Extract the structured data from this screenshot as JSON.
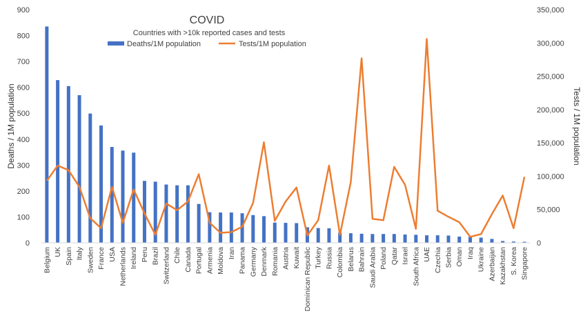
{
  "chart_data": {
    "type": "bar+line",
    "title": "COVID",
    "subtitle": "Countries with >10k reported cases and tests",
    "ylabel_left": "Deaths / 1M population",
    "ylabel_right": "Tests / 1M population",
    "ylim_left": [
      0,
      900
    ],
    "ylim_right": [
      0,
      350000
    ],
    "yticks_left": [
      "0",
      "100",
      "200",
      "300",
      "400",
      "500",
      "600",
      "700",
      "800",
      "900"
    ],
    "yticks_right": [
      "0",
      "50,000",
      "100,000",
      "150,000",
      "200,000",
      "250,000",
      "300,000",
      "350,000"
    ],
    "grid": false,
    "legend_position": "top",
    "categories": [
      "Belgium",
      "UK",
      "Spain",
      "Italy",
      "Sweden",
      "France",
      "USA",
      "Netherlands",
      "Ireland",
      "Peru",
      "Brazil",
      "Switzerland",
      "Chile",
      "Canada",
      "Portugal",
      "Armenia",
      "Moldova",
      "Iran",
      "Panama",
      "Germany",
      "Denmark",
      "Romania",
      "Austria",
      "Kuwait",
      "Dominican Republic",
      "Turkey",
      "Russia",
      "Colombia",
      "Belarus",
      "Bahrain",
      "Saudi Arabia",
      "Poland",
      "Qatar",
      "Israel",
      "South Africa",
      "UAE",
      "Czechia",
      "Serbia",
      "Oman",
      "Iraq",
      "Ukraine",
      "Azerbaijan",
      "Kazakhstan",
      "S. Korea",
      "Singapore"
    ],
    "series": [
      {
        "name": "Deaths/1M population",
        "type": "bar",
        "axis": "left",
        "color": "#4472C4",
        "values": [
          835,
          628,
          605,
          570,
          499,
          453,
          370,
          356,
          348,
          239,
          236,
          225,
          222,
          222,
          150,
          118,
          117,
          117,
          114,
          107,
          103,
          78,
          77,
          76,
          60,
          57,
          56,
          39,
          37,
          35,
          34,
          34,
          34,
          32,
          31,
          29,
          29,
          28,
          24,
          23,
          20,
          15,
          7,
          5,
          4
        ]
      },
      {
        "name": "Tests/1M population",
        "type": "line",
        "axis": "right",
        "color": "#ED7D31",
        "values": [
          93000,
          116000,
          109000,
          84000,
          37000,
          22000,
          84000,
          30000,
          80000,
          44000,
          12000,
          59000,
          49000,
          62000,
          103000,
          30000,
          15000,
          16000,
          24000,
          60000,
          151000,
          33000,
          62000,
          83000,
          11000,
          34000,
          116000,
          12000,
          91000,
          277000,
          36000,
          34000,
          114000,
          87000,
          21000,
          306000,
          48000,
          39000,
          31000,
          9000,
          13000,
          43000,
          71000,
          22000,
          99000
        ]
      }
    ]
  }
}
